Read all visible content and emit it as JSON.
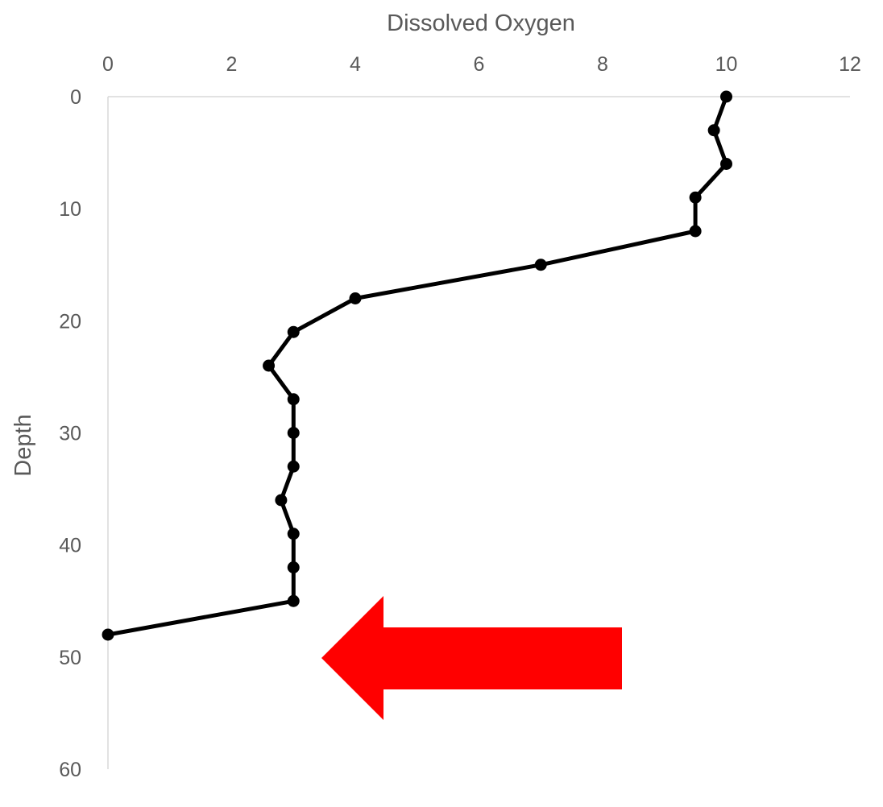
{
  "chart_data": {
    "type": "line",
    "orientation": "depth-profile",
    "xlabel": "Dissolved Oxygen",
    "ylabel": "Depth",
    "xlim": [
      0,
      12
    ],
    "ylim": [
      0,
      60
    ],
    "y_inverted": true,
    "x_axis_position": "top",
    "x_ticks": [
      0,
      2,
      4,
      6,
      8,
      10,
      12
    ],
    "y_ticks": [
      0,
      10,
      20,
      30,
      40,
      50,
      60
    ],
    "grid": false,
    "legend": "none",
    "series": [
      {
        "x": [
          10,
          9.8,
          10,
          9.5,
          9.5,
          7,
          4,
          3,
          2.6,
          3,
          3,
          3,
          2.8,
          3,
          3,
          3,
          0
        ],
        "y": [
          0,
          3,
          6,
          9,
          12,
          15,
          18,
          21,
          24,
          27,
          30,
          33,
          36,
          39,
          42,
          45,
          48
        ],
        "color": "#000000",
        "marker": "circle"
      }
    ],
    "annotations": [
      {
        "type": "arrow",
        "direction": "left",
        "color": "#ff0000"
      }
    ]
  }
}
